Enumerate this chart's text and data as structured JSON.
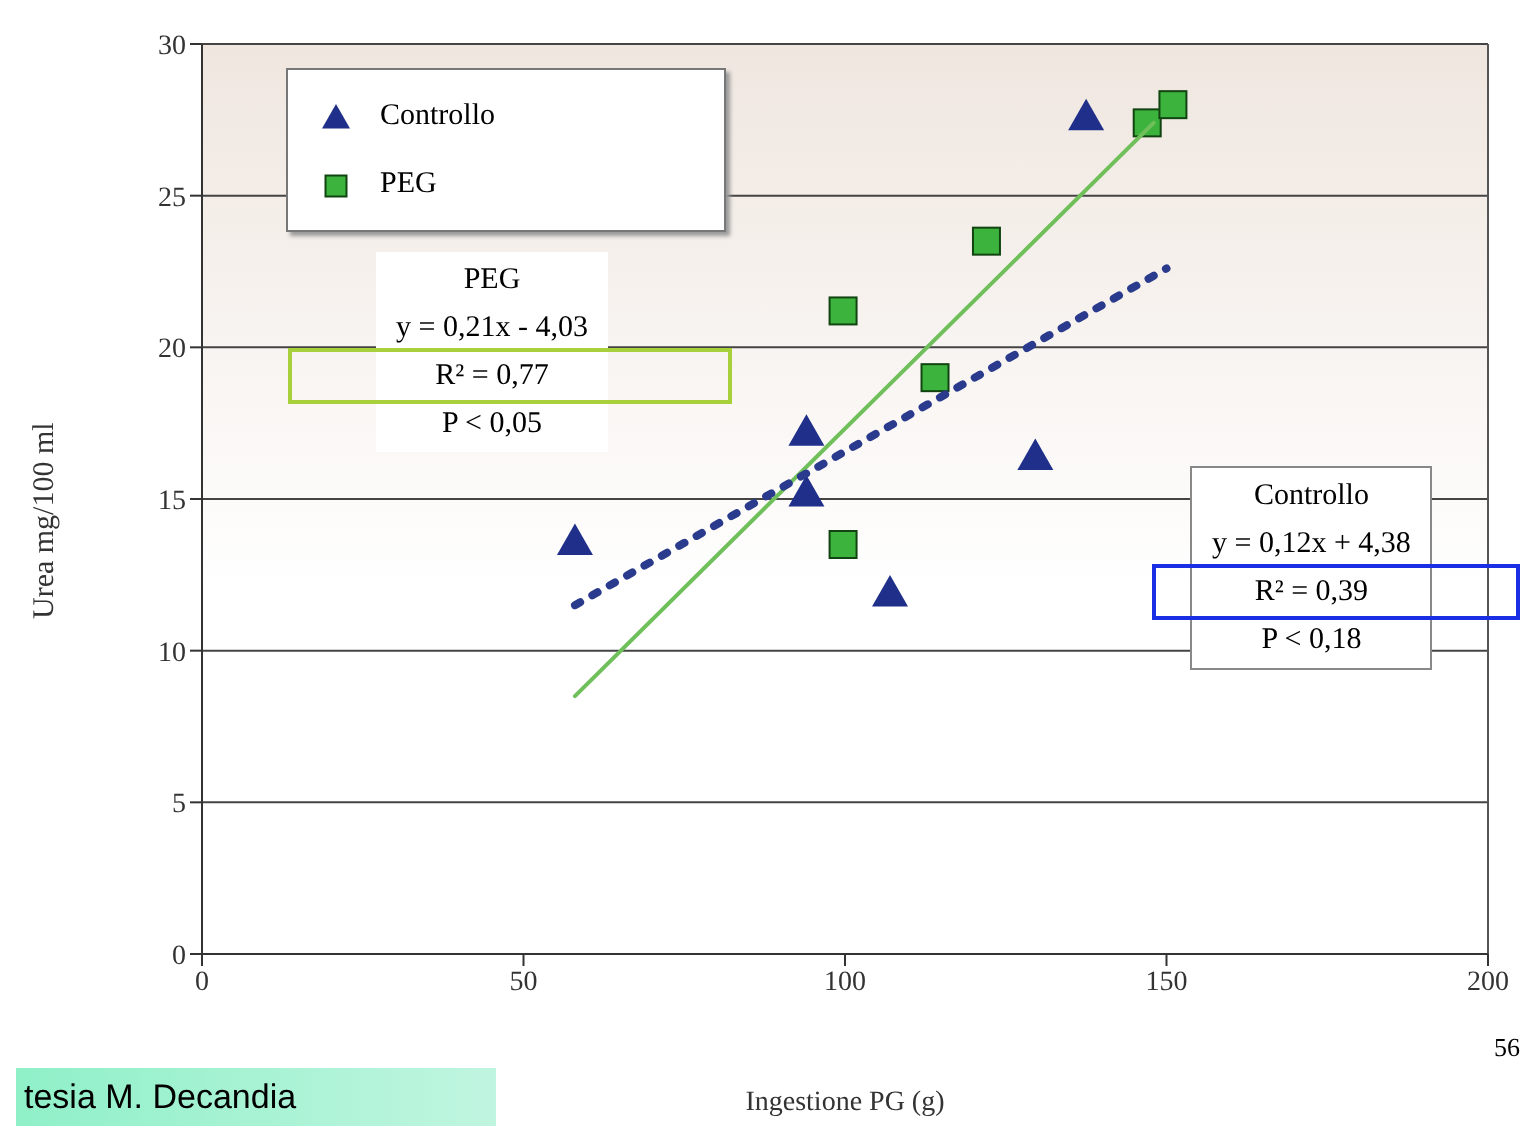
{
  "chart_data": {
    "type": "scatter",
    "xlabel": "Ingestione PG (g)",
    "ylabel": "Urea mg/100 ml",
    "series": [
      {
        "name": "Controllo",
        "color": "#1f2f8a",
        "marker": "triangle",
        "x": [
          58,
          94,
          94,
          107,
          129.6,
          137.5
        ],
        "values": [
          13.6,
          17.2,
          15.2,
          11.9,
          16.4,
          27.6
        ]
      },
      {
        "name": "PEG",
        "color": "#3cb33c",
        "marker": "square",
        "x": [
          99.7,
          99.7,
          114,
          122,
          147,
          151
        ],
        "values": [
          21.2,
          13.5,
          19.0,
          23.5,
          27.4,
          28.0
        ]
      },
      {
        "type": "line",
        "color": "#6fbf5a",
        "line_style": "solid",
        "marker": "none",
        "x": [
          58,
          148
        ],
        "values": [
          8.5,
          27.4
        ]
      },
      {
        "type": "line",
        "color": "#2a3a8c",
        "line_style": "dotted",
        "marker": "none",
        "x": [
          58,
          150
        ],
        "values": [
          11.5,
          22.6
        ]
      }
    ],
    "xlim": [
      0,
      200
    ],
    "xticks": [
      0,
      50,
      100,
      150,
      200
    ],
    "ylim": [
      0,
      30
    ],
    "yticks": [
      0,
      5,
      10,
      15,
      20,
      25,
      30
    ],
    "grid": "y",
    "legend": "top left",
    "annotations": [
      "PEG\ny = 0,21x - 4,03\nR² = 0,77\nP < 0,05",
      "Controllo\ny = 0,12x + 4,38\nR² = 0,39\nP < 0,18",
      "tesia M. Decandia",
      "56"
    ]
  }
}
